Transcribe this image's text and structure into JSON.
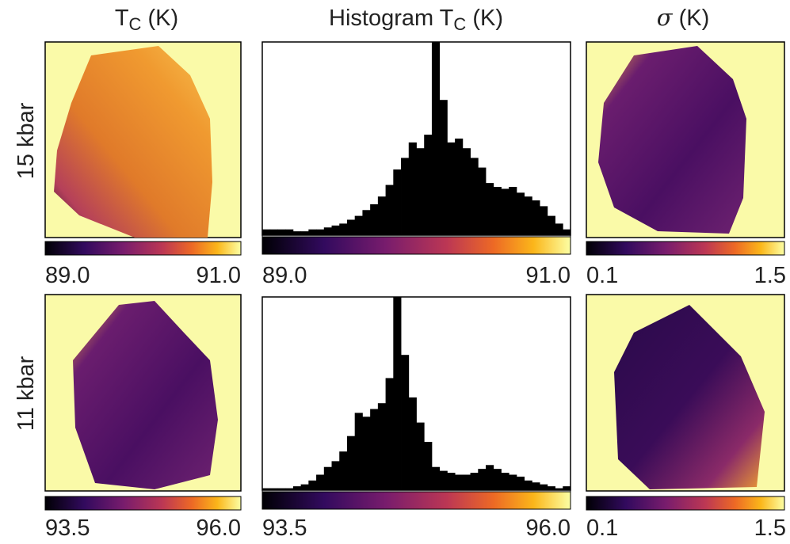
{
  "columns": [
    {
      "title": "T",
      "sub": "C",
      "unit": " (K)"
    },
    {
      "title": "Histogram T",
      "sub": "C",
      "unit": " (K)"
    },
    {
      "title": "σ",
      "unit": " (K)"
    }
  ],
  "rows": [
    {
      "label": "15 kbar",
      "map_scale": [
        {
          "value": 89,
          "label": "89.0"
        },
        {
          "value": 91,
          "label": "91.0"
        }
      ],
      "sigma_scale": [
        0.1,
        1.5
      ]
    },
    {
      "label": "11 kbar",
      "map_scale": [
        {
          "value": 93.5,
          "label": "93.5"
        },
        {
          "value": 96,
          "label": "96.0"
        }
      ],
      "sigma_scale": [
        0.1,
        1.5
      ]
    }
  ],
  "chart_data": [
    {
      "type": "histogram",
      "color": "#000000",
      "bins": [
        89,
        89.05,
        89.1,
        89.15,
        89.2,
        89.25,
        89.3,
        89.35,
        89.4,
        89.45,
        89.5,
        89.55,
        89.6,
        89.65,
        89.7,
        89.75,
        89.8,
        89.85,
        89.9,
        89.95,
        90,
        90.05,
        90.1,
        90.15,
        90.2,
        90.25,
        90.3,
        90.35,
        90.4,
        90.45,
        90.5,
        90.55,
        90.6,
        90.65,
        90.7,
        90.75,
        90.8,
        90.85,
        90.9,
        90.95,
        91
      ],
      "values": [
        3,
        3,
        3,
        3,
        2,
        2,
        3,
        3,
        4,
        5,
        6,
        8,
        10,
        13,
        16,
        20,
        26,
        34,
        40,
        48,
        45,
        52,
        100,
        70,
        48,
        50,
        45,
        40,
        35,
        27,
        25,
        24,
        25,
        22,
        20,
        18,
        15,
        10,
        6,
        3
      ],
      "xlim": [
        89,
        91
      ],
      "ylim": [
        0,
        100
      ],
      "xticks": [
        {
          "value": 89,
          "label": "89.0"
        },
        {
          "value": 91,
          "label": "91.0"
        }
      ]
    },
    {
      "type": "histogram",
      "color": "#000000",
      "bins": [
        93.5,
        93.5625,
        93.625,
        93.6875,
        93.75,
        93.8125,
        93.875,
        93.9375,
        94,
        94.0625,
        94.125,
        94.1875,
        94.25,
        94.3125,
        94.375,
        94.4375,
        94.5,
        94.5625,
        94.625,
        94.6875,
        94.75,
        94.8125,
        94.875,
        94.9375,
        95,
        95.0625,
        95.125,
        95.1875,
        95.25,
        95.3125,
        95.375,
        95.4375,
        95.5,
        95.5625,
        95.625,
        95.6875,
        95.75,
        95.8125,
        95.875,
        95.9375,
        96
      ],
      "values": [
        1,
        1,
        1,
        1,
        2,
        3,
        5,
        8,
        12,
        15,
        20,
        28,
        40,
        38,
        42,
        45,
        58,
        100,
        70,
        48,
        35,
        25,
        12,
        10,
        9,
        8,
        8,
        9,
        11,
        13,
        11,
        9,
        8,
        7,
        5,
        4,
        3,
        2,
        1,
        2
      ],
      "xlim": [
        93.5,
        96
      ],
      "ylim": [
        0,
        100
      ],
      "xticks": [
        {
          "value": 93.5,
          "label": "93.5"
        },
        {
          "value": 96,
          "label": "96.0"
        }
      ]
    }
  ]
}
